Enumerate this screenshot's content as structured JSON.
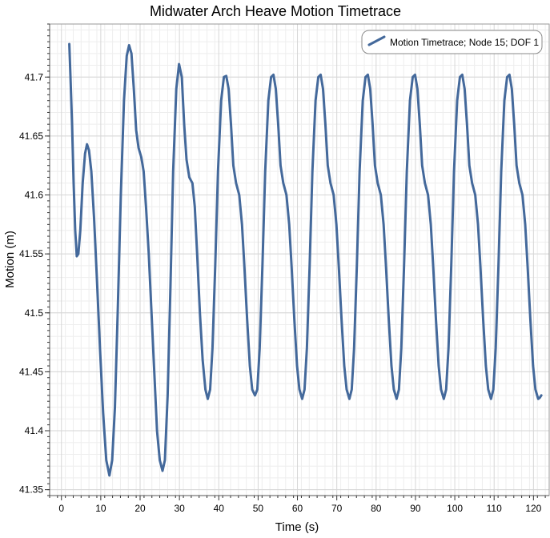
{
  "chart_data": {
    "type": "line",
    "title": "Midwater Arch Heave Motion Timetrace",
    "xlabel": "Time (s)",
    "ylabel": "Motion (m)",
    "xlim": [
      -3,
      124
    ],
    "ylim": [
      41.345,
      41.745
    ],
    "x_ticks": [
      0,
      10,
      20,
      30,
      40,
      50,
      60,
      70,
      80,
      90,
      100,
      110,
      120
    ],
    "x_tick_labels": [
      "0",
      "10",
      "20",
      "30",
      "40",
      "50",
      "60",
      "70",
      "80",
      "90",
      "100",
      "110",
      "120"
    ],
    "y_ticks": [
      41.35,
      41.4,
      41.45,
      41.5,
      41.55,
      41.6,
      41.65,
      41.7
    ],
    "y_tick_labels": [
      "41.35",
      "41.4",
      "41.45",
      "41.5",
      "41.55",
      "41.6",
      "41.65",
      "41.7"
    ],
    "grid": true,
    "legend_position": "top-right",
    "line_color": "#44699b",
    "series": [
      {
        "name": "Motion Timetrace; Node 15; DOF 1",
        "points": [
          [
            2.0,
            41.728
          ],
          [
            2.3,
            41.7
          ],
          [
            2.7,
            41.66
          ],
          [
            3.1,
            41.61
          ],
          [
            3.5,
            41.57
          ],
          [
            3.9,
            41.548
          ],
          [
            4.3,
            41.55
          ],
          [
            4.8,
            41.57
          ],
          [
            5.4,
            41.61
          ],
          [
            6.0,
            41.635
          ],
          [
            6.5,
            41.643
          ],
          [
            7.0,
            41.638
          ],
          [
            7.6,
            41.62
          ],
          [
            8.3,
            41.58
          ],
          [
            9.0,
            41.53
          ],
          [
            9.8,
            41.47
          ],
          [
            10.6,
            41.415
          ],
          [
            11.4,
            41.375
          ],
          [
            12.2,
            41.362
          ],
          [
            12.9,
            41.375
          ],
          [
            13.6,
            41.42
          ],
          [
            14.3,
            41.5
          ],
          [
            15.1,
            41.6
          ],
          [
            15.9,
            41.68
          ],
          [
            16.6,
            41.718
          ],
          [
            17.2,
            41.727
          ],
          [
            17.8,
            41.72
          ],
          [
            18.4,
            41.69
          ],
          [
            19.0,
            41.655
          ],
          [
            19.6,
            41.64
          ],
          [
            20.3,
            41.632
          ],
          [
            20.9,
            41.62
          ],
          [
            21.5,
            41.59
          ],
          [
            22.2,
            41.55
          ],
          [
            22.9,
            41.5
          ],
          [
            23.6,
            41.45
          ],
          [
            24.3,
            41.4
          ],
          [
            25.0,
            41.375
          ],
          [
            25.7,
            41.366
          ],
          [
            26.3,
            41.375
          ],
          [
            27.0,
            41.43
          ],
          [
            27.7,
            41.52
          ],
          [
            28.4,
            41.62
          ],
          [
            29.2,
            41.69
          ],
          [
            29.9,
            41.711
          ],
          [
            30.6,
            41.7
          ],
          [
            31.2,
            41.66
          ],
          [
            31.8,
            41.63
          ],
          [
            32.5,
            41.615
          ],
          [
            33.3,
            41.61
          ],
          [
            33.9,
            41.59
          ],
          [
            34.5,
            41.55
          ],
          [
            35.2,
            41.5
          ],
          [
            35.9,
            41.46
          ],
          [
            36.6,
            41.435
          ],
          [
            37.2,
            41.427
          ],
          [
            37.8,
            41.435
          ],
          [
            38.4,
            41.47
          ],
          [
            39.1,
            41.54
          ],
          [
            39.8,
            41.62
          ],
          [
            40.6,
            41.68
          ],
          [
            41.3,
            41.7
          ],
          [
            41.9,
            41.701
          ],
          [
            42.5,
            41.69
          ],
          [
            43.1,
            41.66
          ],
          [
            43.7,
            41.625
          ],
          [
            44.4,
            41.61
          ],
          [
            45.2,
            41.6
          ],
          [
            45.9,
            41.575
          ],
          [
            46.5,
            41.54
          ],
          [
            47.2,
            41.495
          ],
          [
            47.9,
            41.455
          ],
          [
            48.5,
            41.435
          ],
          [
            49.2,
            41.43
          ],
          [
            49.8,
            41.435
          ],
          [
            50.4,
            41.47
          ],
          [
            51.1,
            41.54
          ],
          [
            51.8,
            41.62
          ],
          [
            52.6,
            41.68
          ],
          [
            53.3,
            41.7
          ],
          [
            53.9,
            41.702
          ],
          [
            54.5,
            41.69
          ],
          [
            55.1,
            41.66
          ],
          [
            55.7,
            41.625
          ],
          [
            56.4,
            41.61
          ],
          [
            57.2,
            41.6
          ],
          [
            57.9,
            41.575
          ],
          [
            58.5,
            41.54
          ],
          [
            59.2,
            41.495
          ],
          [
            59.9,
            41.455
          ],
          [
            60.5,
            41.435
          ],
          [
            61.2,
            41.427
          ],
          [
            61.8,
            41.435
          ],
          [
            62.4,
            41.47
          ],
          [
            63.1,
            41.54
          ],
          [
            63.8,
            41.62
          ],
          [
            64.6,
            41.68
          ],
          [
            65.3,
            41.7
          ],
          [
            65.9,
            41.702
          ],
          [
            66.5,
            41.69
          ],
          [
            67.1,
            41.66
          ],
          [
            67.7,
            41.625
          ],
          [
            68.4,
            41.61
          ],
          [
            69.2,
            41.6
          ],
          [
            69.9,
            41.575
          ],
          [
            70.5,
            41.54
          ],
          [
            71.2,
            41.495
          ],
          [
            71.9,
            41.455
          ],
          [
            72.5,
            41.435
          ],
          [
            73.2,
            41.427
          ],
          [
            73.8,
            41.435
          ],
          [
            74.4,
            41.47
          ],
          [
            75.1,
            41.54
          ],
          [
            75.8,
            41.62
          ],
          [
            76.6,
            41.68
          ],
          [
            77.3,
            41.7
          ],
          [
            77.9,
            41.702
          ],
          [
            78.5,
            41.69
          ],
          [
            79.1,
            41.66
          ],
          [
            79.7,
            41.625
          ],
          [
            80.4,
            41.61
          ],
          [
            81.2,
            41.6
          ],
          [
            81.9,
            41.575
          ],
          [
            82.5,
            41.54
          ],
          [
            83.2,
            41.495
          ],
          [
            83.9,
            41.455
          ],
          [
            84.5,
            41.435
          ],
          [
            85.2,
            41.427
          ],
          [
            85.8,
            41.435
          ],
          [
            86.4,
            41.47
          ],
          [
            87.1,
            41.54
          ],
          [
            87.8,
            41.62
          ],
          [
            88.6,
            41.68
          ],
          [
            89.3,
            41.7
          ],
          [
            89.9,
            41.702
          ],
          [
            90.5,
            41.69
          ],
          [
            91.1,
            41.66
          ],
          [
            91.7,
            41.625
          ],
          [
            92.4,
            41.61
          ],
          [
            93.2,
            41.6
          ],
          [
            93.9,
            41.575
          ],
          [
            94.5,
            41.54
          ],
          [
            95.2,
            41.495
          ],
          [
            95.9,
            41.455
          ],
          [
            96.5,
            41.435
          ],
          [
            97.2,
            41.427
          ],
          [
            97.8,
            41.435
          ],
          [
            98.4,
            41.47
          ],
          [
            99.1,
            41.54
          ],
          [
            99.8,
            41.62
          ],
          [
            100.6,
            41.68
          ],
          [
            101.3,
            41.7
          ],
          [
            101.9,
            41.702
          ],
          [
            102.5,
            41.69
          ],
          [
            103.1,
            41.66
          ],
          [
            103.7,
            41.625
          ],
          [
            104.4,
            41.61
          ],
          [
            105.2,
            41.6
          ],
          [
            105.9,
            41.575
          ],
          [
            106.5,
            41.54
          ],
          [
            107.2,
            41.495
          ],
          [
            107.9,
            41.455
          ],
          [
            108.5,
            41.435
          ],
          [
            109.2,
            41.427
          ],
          [
            109.8,
            41.435
          ],
          [
            110.4,
            41.47
          ],
          [
            111.1,
            41.54
          ],
          [
            111.8,
            41.62
          ],
          [
            112.6,
            41.68
          ],
          [
            113.3,
            41.7
          ],
          [
            113.9,
            41.702
          ],
          [
            114.5,
            41.69
          ],
          [
            115.1,
            41.66
          ],
          [
            115.7,
            41.625
          ],
          [
            116.4,
            41.61
          ],
          [
            117.2,
            41.6
          ],
          [
            117.9,
            41.575
          ],
          [
            118.5,
            41.54
          ],
          [
            119.2,
            41.495
          ],
          [
            119.9,
            41.455
          ],
          [
            120.5,
            41.435
          ],
          [
            121.2,
            41.427
          ],
          [
            121.6,
            41.428
          ],
          [
            122.0,
            41.43
          ]
        ]
      }
    ]
  }
}
